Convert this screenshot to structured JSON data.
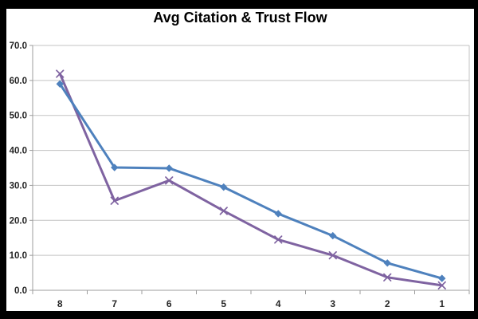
{
  "window": {
    "frame_color": "#000000",
    "background_color": "#ffffff"
  },
  "chart_data": {
    "type": "line",
    "title": "Avg Citation & Trust Flow",
    "categories": [
      "8",
      "7",
      "6",
      "5",
      "4",
      "3",
      "2",
      "1"
    ],
    "series": [
      {
        "id": "blue-diamond-series",
        "marker": "diamond",
        "color": "#4E81BD",
        "values": [
          59.0,
          35.1,
          34.9,
          29.5,
          21.9,
          15.6,
          7.8,
          3.4
        ]
      },
      {
        "id": "purple-x-series",
        "marker": "x",
        "color": "#7F63A1",
        "values": [
          61.9,
          25.6,
          31.4,
          22.7,
          14.5,
          10.0,
          3.7,
          1.4
        ]
      }
    ],
    "xlabel": "",
    "ylabel": "",
    "ylim": [
      0,
      70
    ],
    "ytick_step": 10,
    "ytick_labels": [
      "0.0",
      "10.0",
      "20.0",
      "30.0",
      "40.0",
      "50.0",
      "60.0",
      "70.0"
    ],
    "grid": true,
    "legend": "none",
    "colors": {
      "gridline": "#C3C3C3",
      "axis": "#9C9C9C",
      "tick_label": "#262626",
      "title": "#000000"
    }
  }
}
